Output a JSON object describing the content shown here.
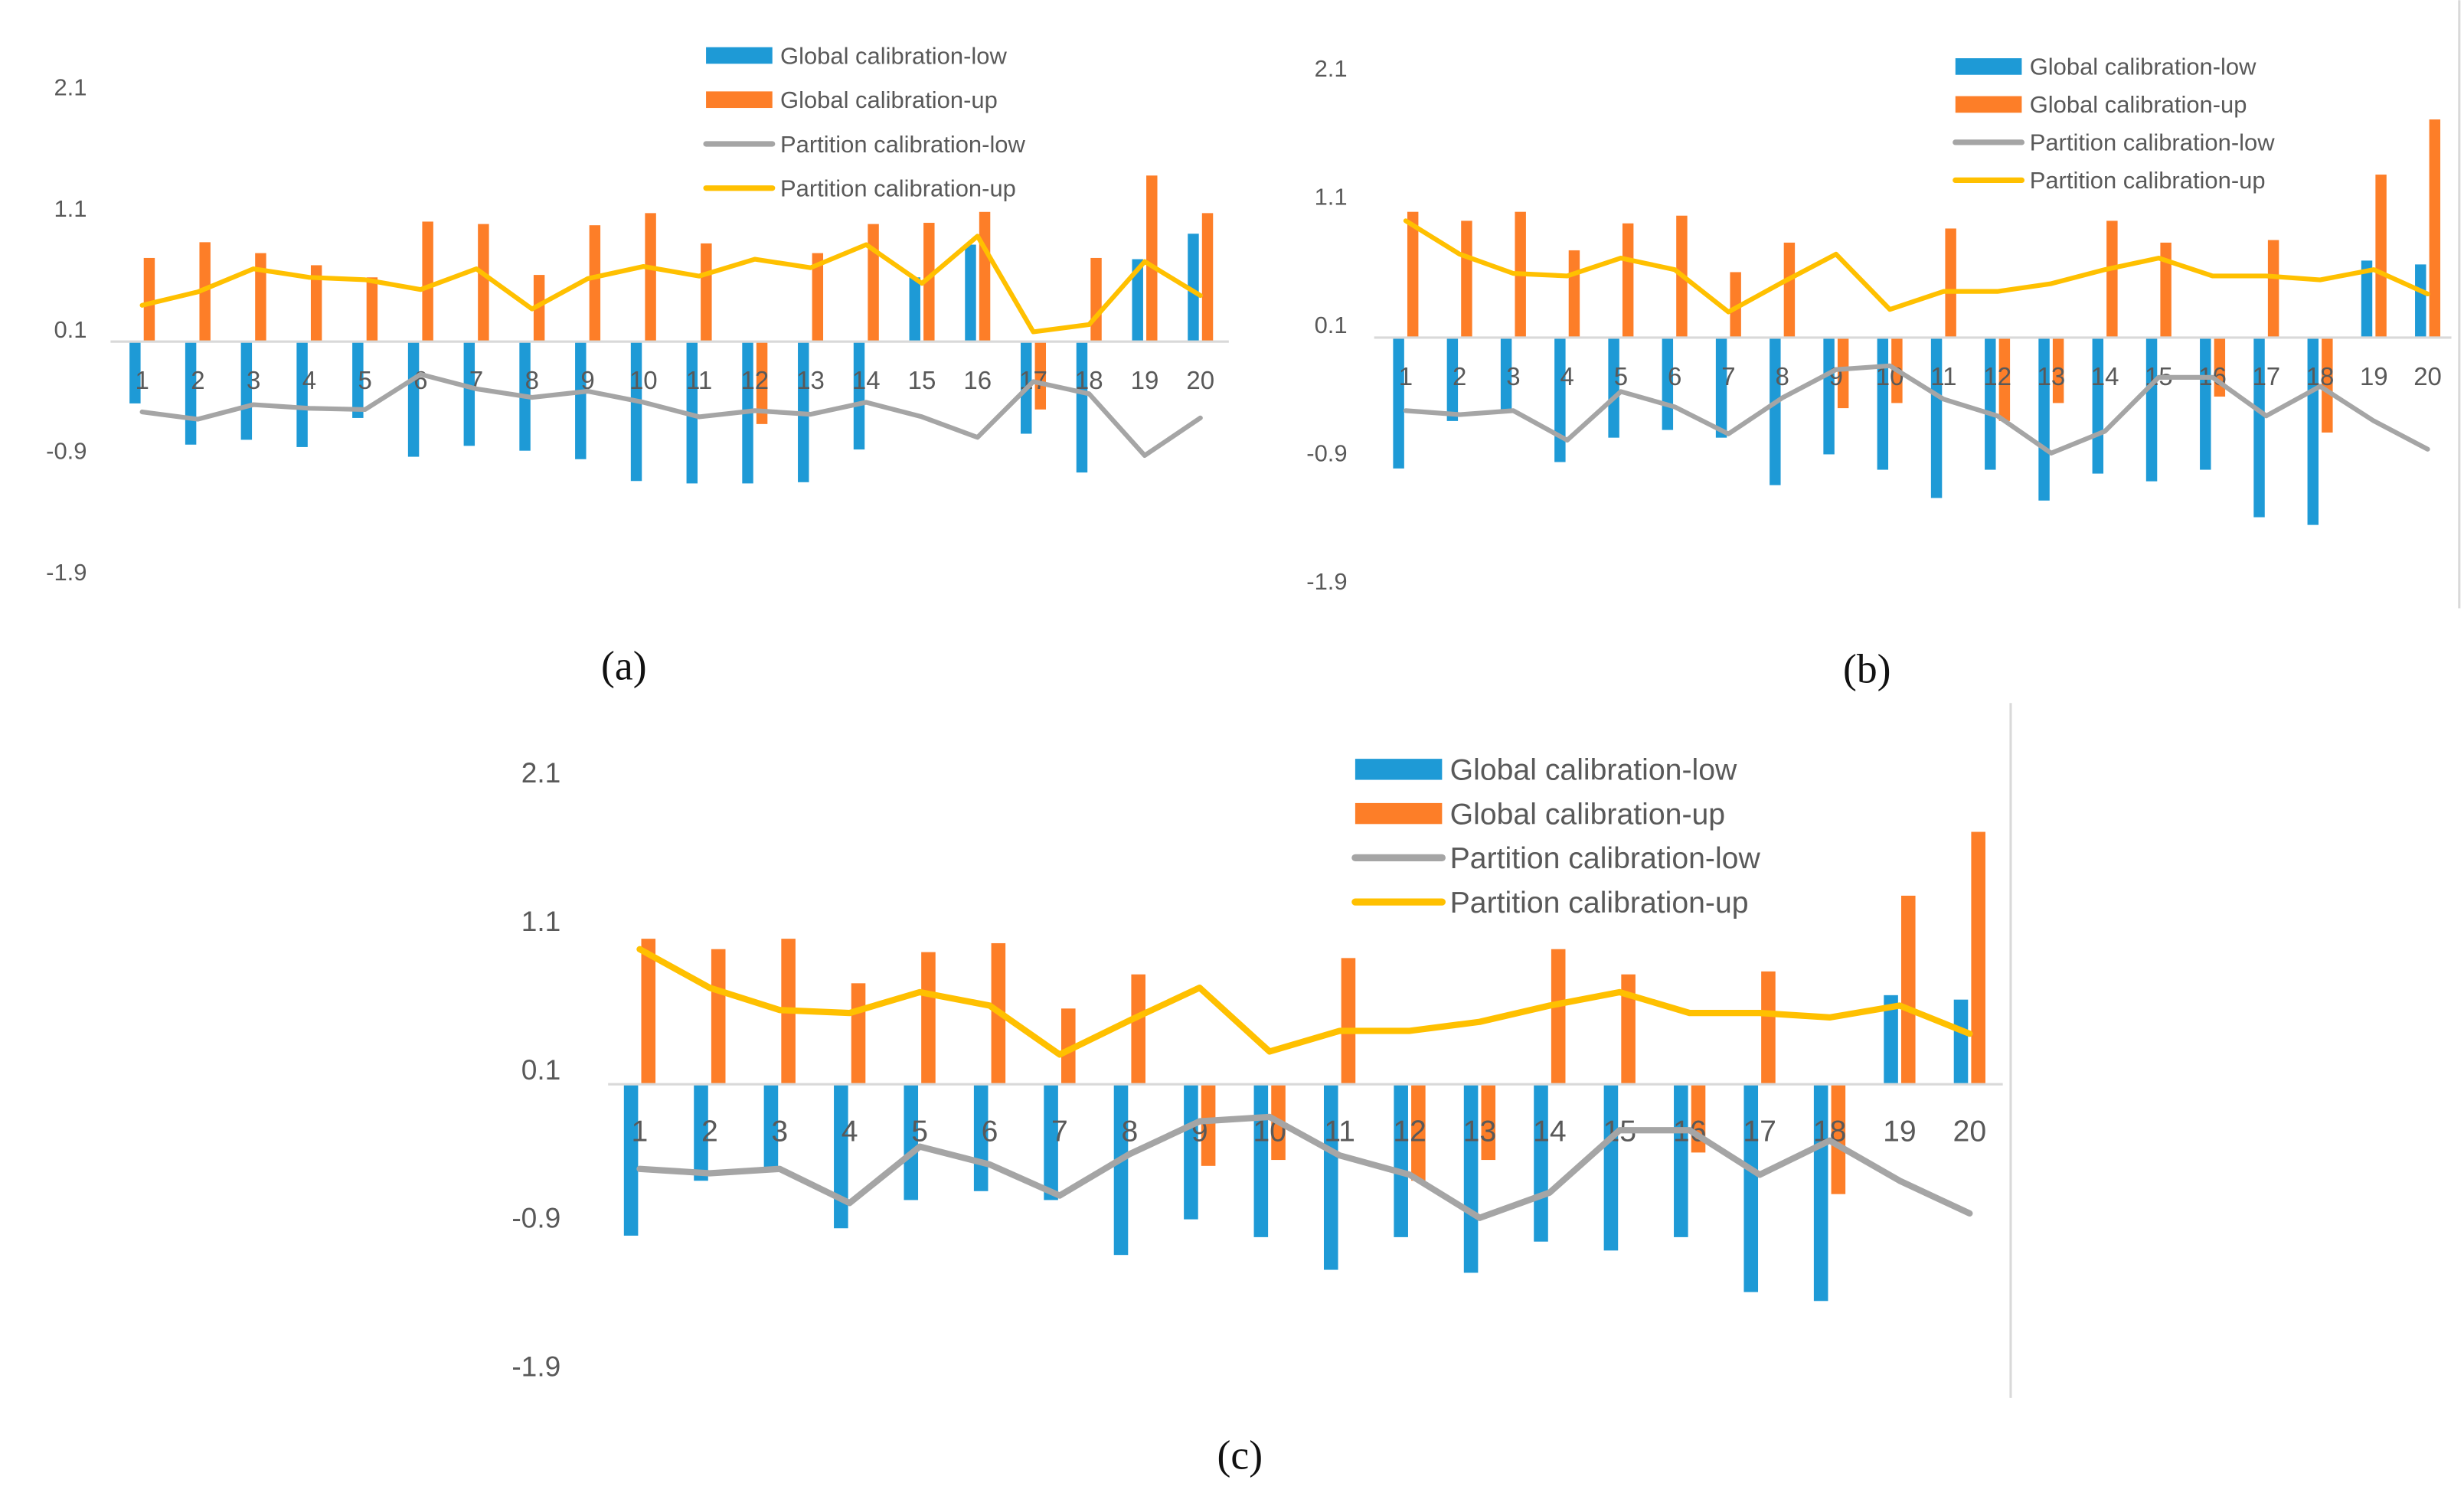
{
  "chart_data": [
    {
      "type": "bar",
      "panel_label": "(a)",
      "categories": [
        "1",
        "2",
        "3",
        "4",
        "5",
        "6",
        "7",
        "8",
        "9",
        "10",
        "11",
        "12",
        "13",
        "14",
        "15",
        "16",
        "17",
        "18",
        "19",
        "20"
      ],
      "ylim": [
        -1.9,
        2.1
      ],
      "yticks": [
        "2.1",
        "1.1",
        "0.1",
        "-0.9",
        "-1.9"
      ],
      "ytick_values": [
        2.1,
        1.1,
        0.1,
        -0.9,
        -1.9
      ],
      "legend_position": "top-right",
      "series": [
        {
          "name": "Global calibration-low",
          "kind": "bar",
          "color": "#1e9ad6",
          "values": [
            -0.51,
            -0.85,
            -0.81,
            -0.87,
            -0.63,
            -0.95,
            -0.86,
            -0.9,
            -0.97,
            -1.15,
            -1.17,
            -1.17,
            -1.16,
            -0.89,
            0.53,
            0.8,
            -0.76,
            -1.08,
            0.68,
            0.89
          ]
        },
        {
          "name": "Global calibration-up",
          "kind": "bar",
          "color": "#fd7e28",
          "values": [
            0.69,
            0.82,
            0.73,
            0.63,
            0.53,
            0.99,
            0.97,
            0.55,
            0.96,
            1.06,
            0.81,
            -0.68,
            0.73,
            0.97,
            0.98,
            1.07,
            -0.56,
            0.69,
            1.37,
            1.06
          ]
        },
        {
          "name": "Partition calibration-low",
          "kind": "line",
          "color": "#a5a5a5",
          "values": [
            -0.58,
            -0.64,
            -0.52,
            -0.55,
            -0.56,
            -0.27,
            -0.39,
            -0.46,
            -0.41,
            -0.5,
            -0.62,
            -0.57,
            -0.6,
            -0.5,
            -0.62,
            -0.79,
            -0.33,
            -0.43,
            -0.94,
            -0.63
          ]
        },
        {
          "name": "Partition calibration-up",
          "kind": "line",
          "color": "#ffc000",
          "values": [
            0.3,
            0.41,
            0.6,
            0.53,
            0.51,
            0.43,
            0.6,
            0.27,
            0.52,
            0.62,
            0.54,
            0.68,
            0.61,
            0.8,
            0.48,
            0.87,
            0.08,
            0.14,
            0.66,
            0.38
          ]
        }
      ]
    },
    {
      "type": "bar",
      "panel_label": "(b)",
      "categories": [
        "1",
        "2",
        "3",
        "4",
        "5",
        "6",
        "7",
        "8",
        "9",
        "10",
        "11",
        "12",
        "13",
        "14",
        "15",
        "16",
        "17",
        "18",
        "19",
        "20"
      ],
      "ylim": [
        -1.9,
        2.1
      ],
      "yticks": [
        "2.1",
        "1.1",
        "0.1",
        "-0.9",
        "-1.9"
      ],
      "ytick_values": [
        2.1,
        1.1,
        0.1,
        -0.9,
        -1.9
      ],
      "legend_position": "top-right",
      "series": [
        {
          "name": "Global calibration-low",
          "kind": "bar",
          "color": "#1e9ad6",
          "values": [
            -1.02,
            -0.65,
            -0.56,
            -0.97,
            -0.78,
            -0.72,
            -0.78,
            -1.15,
            -0.91,
            -1.03,
            -1.25,
            -1.03,
            -1.27,
            -1.06,
            -1.12,
            -1.03,
            -1.4,
            -1.46,
            0.6,
            0.57
          ]
        },
        {
          "name": "Global calibration-up",
          "kind": "bar",
          "color": "#fd7e28",
          "values": [
            0.98,
            0.91,
            0.98,
            0.68,
            0.89,
            0.95,
            0.51,
            0.74,
            -0.55,
            -0.51,
            0.85,
            -0.65,
            -0.51,
            0.91,
            0.74,
            -0.46,
            0.76,
            -0.74,
            1.27,
            1.7
          ]
        },
        {
          "name": "Partition calibration-low",
          "kind": "line",
          "color": "#a5a5a5",
          "values": [
            -0.57,
            -0.6,
            -0.57,
            -0.8,
            -0.42,
            -0.54,
            -0.75,
            -0.47,
            -0.25,
            -0.22,
            -0.48,
            -0.61,
            -0.9,
            -0.73,
            -0.31,
            -0.31,
            -0.61,
            -0.38,
            -0.65,
            -0.87
          ]
        },
        {
          "name": "Partition calibration-up",
          "kind": "line",
          "color": "#ffc000",
          "values": [
            0.91,
            0.65,
            0.5,
            0.48,
            0.62,
            0.53,
            0.2,
            0.43,
            0.65,
            0.22,
            0.36,
            0.36,
            0.42,
            0.53,
            0.62,
            0.48,
            0.48,
            0.45,
            0.53,
            0.34
          ]
        }
      ]
    },
    {
      "type": "bar",
      "panel_label": "(c)",
      "categories": [
        "1",
        "2",
        "3",
        "4",
        "5",
        "6",
        "7",
        "8",
        "9",
        "10",
        "11",
        "12",
        "13",
        "14",
        "15",
        "16",
        "17",
        "18",
        "19",
        "20"
      ],
      "ylim": [
        -1.9,
        2.1
      ],
      "yticks": [
        "2.1",
        "1.1",
        "0.1",
        "-0.9",
        "-1.9"
      ],
      "ytick_values": [
        2.1,
        1.1,
        0.1,
        -0.9,
        -1.9
      ],
      "legend_position": "top-right",
      "series": [
        {
          "name": "Global calibration-low",
          "kind": "bar",
          "color": "#1e9ad6",
          "values": [
            -1.02,
            -0.65,
            -0.56,
            -0.97,
            -0.78,
            -0.72,
            -0.78,
            -1.15,
            -0.91,
            -1.03,
            -1.25,
            -1.03,
            -1.27,
            -1.06,
            -1.12,
            -1.03,
            -1.4,
            -1.46,
            0.6,
            0.57
          ]
        },
        {
          "name": "Global calibration-up",
          "kind": "bar",
          "color": "#fd7e28",
          "values": [
            0.98,
            0.91,
            0.98,
            0.68,
            0.89,
            0.95,
            0.51,
            0.74,
            -0.55,
            -0.51,
            0.85,
            -0.65,
            -0.51,
            0.91,
            0.74,
            -0.46,
            0.76,
            -0.74,
            1.27,
            1.7
          ]
        },
        {
          "name": "Partition calibration-low",
          "kind": "line",
          "color": "#a5a5a5",
          "values": [
            -0.57,
            -0.6,
            -0.57,
            -0.8,
            -0.42,
            -0.54,
            -0.75,
            -0.47,
            -0.25,
            -0.22,
            -0.48,
            -0.61,
            -0.9,
            -0.73,
            -0.31,
            -0.31,
            -0.61,
            -0.38,
            -0.65,
            -0.87
          ]
        },
        {
          "name": "Partition calibration-up",
          "kind": "line",
          "color": "#ffc000",
          "values": [
            0.91,
            0.65,
            0.5,
            0.48,
            0.62,
            0.53,
            0.2,
            0.43,
            0.65,
            0.22,
            0.36,
            0.36,
            0.42,
            0.53,
            0.62,
            0.48,
            0.48,
            0.45,
            0.53,
            0.34
          ]
        }
      ]
    }
  ]
}
